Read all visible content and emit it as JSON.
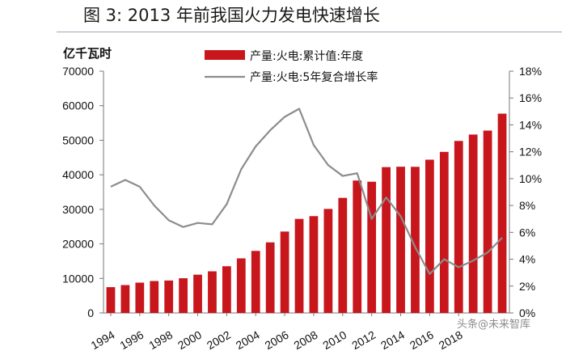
{
  "figure": {
    "title": "图 3:  2013 年前我国火力发电快速增长"
  },
  "chart_data": {
    "type": "bar",
    "title": "图 3:  2013 年前我国火力发电快速增长",
    "x": [
      1994,
      1995,
      1996,
      1997,
      1998,
      1999,
      2000,
      2001,
      2002,
      2003,
      2004,
      2005,
      2006,
      2007,
      2008,
      2009,
      2010,
      2011,
      2012,
      2013,
      2014,
      2015,
      2016,
      2017,
      2018,
      2019,
      2020,
      2021
    ],
    "x_tick_labels": [
      "1994",
      "1996",
      "1998",
      "2000",
      "2002",
      "2004",
      "2006",
      "2008",
      "2010",
      "2012",
      "2014",
      "2016",
      "2018"
    ],
    "y_unit_label": "亿千瓦时",
    "ylim_left": [
      0,
      70000
    ],
    "y_ticks_left": [
      "0",
      "10000",
      "20000",
      "30000",
      "40000",
      "50000",
      "60000",
      "70000"
    ],
    "ylim_right": [
      0,
      18
    ],
    "y_ticks_right": [
      "0%",
      "2%",
      "4%",
      "6%",
      "8%",
      "10%",
      "12%",
      "14%",
      "16%",
      "18%"
    ],
    "series": [
      {
        "name": "产量:火电:累计值:年度",
        "type": "bar",
        "axis": "left",
        "color": "#c8161d",
        "values": [
          7470,
          8070,
          8780,
          9250,
          9390,
          10050,
          11080,
          12050,
          13520,
          15800,
          17960,
          20430,
          23570,
          27230,
          28030,
          30120,
          33320,
          38340,
          37990,
          42220,
          42340,
          42310,
          44370,
          46630,
          49800,
          51650,
          52800,
          57700
        ]
      },
      {
        "name": "产量:火电:5年复合增长率",
        "type": "line",
        "axis": "right",
        "color": "#8c8c8c",
        "unit": "%",
        "values": [
          9.4,
          9.9,
          9.4,
          8.0,
          6.9,
          6.4,
          6.7,
          6.6,
          8.1,
          10.7,
          12.4,
          13.6,
          14.6,
          15.2,
          12.5,
          11.0,
          10.2,
          10.4,
          7.0,
          8.6,
          7.2,
          4.9,
          2.9,
          4.0,
          3.4,
          3.9,
          4.5,
          5.6
        ]
      }
    ],
    "grid": false,
    "legend_position": "top"
  },
  "watermark": {
    "line1": "头条",
    "line2": "未来智库",
    "mark": "@"
  }
}
